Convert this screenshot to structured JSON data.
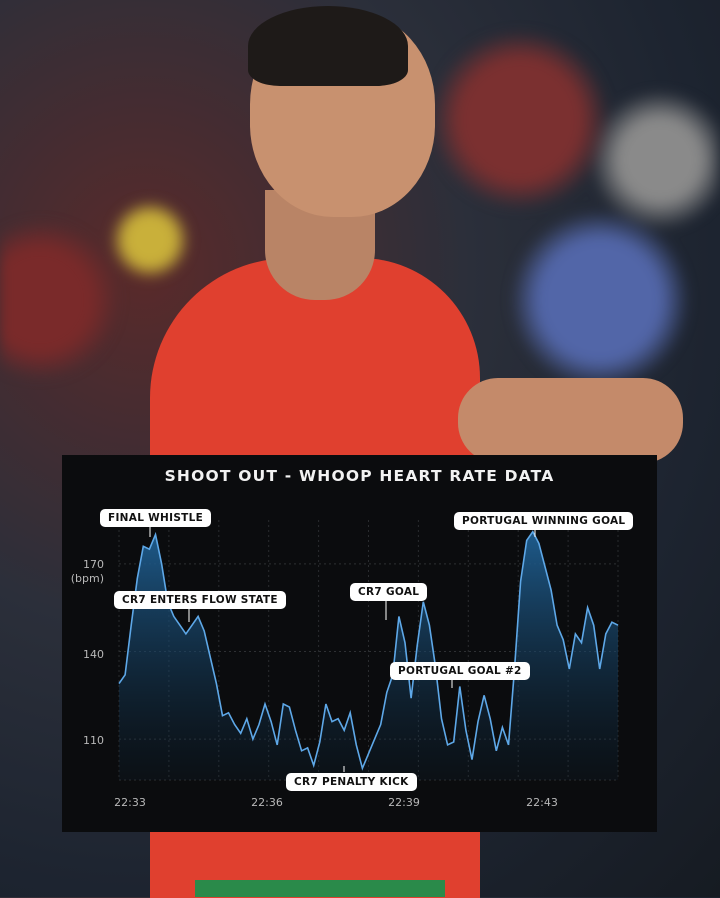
{
  "chart_data": {
    "type": "area",
    "title": "SHOOT OUT -  WHOOP HEART RATE DATA",
    "ylabel": "(bpm)",
    "y_ticks": [
      "170",
      "140",
      "110"
    ],
    "y_tick_values": [
      170,
      140,
      110
    ],
    "x_ticks": [
      "22:33",
      "22:36",
      "22:39",
      "22:43"
    ],
    "ylim": [
      96,
      185
    ],
    "grid": true,
    "colors": {
      "line": "#5ea8e8",
      "fill": "#1f5f92",
      "background": "#0b0c0e"
    },
    "values": [
      129,
      132,
      149,
      165,
      176,
      175,
      180,
      170,
      157,
      152,
      149,
      146,
      149,
      152,
      147,
      138,
      129,
      118,
      119,
      115,
      112,
      117,
      110,
      115,
      122,
      116,
      108,
      122,
      121,
      113,
      106,
      107,
      101,
      109,
      122,
      116,
      117,
      113,
      119,
      108,
      100,
      105,
      110,
      115,
      126,
      132,
      152,
      143,
      124,
      142,
      157,
      149,
      135,
      117,
      108,
      109,
      128,
      113,
      103,
      116,
      125,
      117,
      106,
      114,
      108,
      134,
      164,
      178,
      181,
      177,
      169,
      161,
      149,
      144,
      134,
      146,
      143,
      155,
      149,
      134,
      146,
      150,
      149
    ],
    "annotations": [
      {
        "label": "FINAL WHISTLE"
      },
      {
        "label": "CR7 ENTERS FLOW STATE"
      },
      {
        "label": "CR7 PENALTY KICK"
      },
      {
        "label": "CR7 GOAL"
      },
      {
        "label": "PORTUGAL GOAL #2"
      },
      {
        "label": "PORTUGAL WINNING GOAL"
      }
    ]
  }
}
